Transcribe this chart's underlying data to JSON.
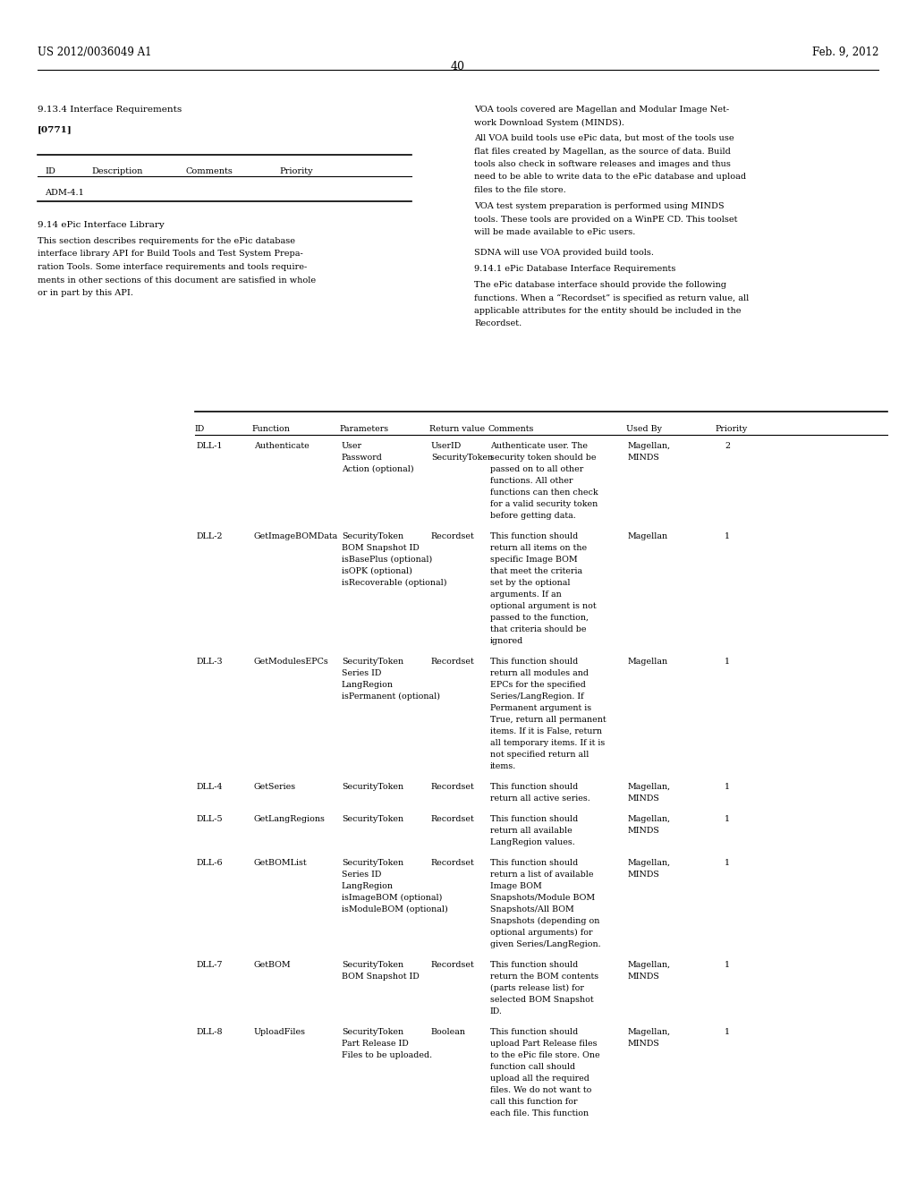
{
  "bg_color": "#ffffff",
  "header_left": "US 2012/0036049 A1",
  "header_right": "Feb. 9, 2012",
  "page_number": "40",
  "section1_heading": "9.13.4 Interface Requirements",
  "para0771": "[0771]",
  "small_table_headers": [
    "ID",
    "Description",
    "Comments",
    "Priority"
  ],
  "small_table_row": "ADM-4.1",
  "section914_heading": "9.14 ePic Interface Library",
  "section914_lines": [
    "This section describes requirements for the ePic database",
    "interface library API for Build Tools and Test System Prepa-",
    "ration Tools. Some interface requirements and tools require-",
    "ments in other sections of this document are satisfied in whole",
    "or in part by this API."
  ],
  "right_col_blocks": [
    [
      "VOA tools covered are Magellan and Modular Image Net-",
      "work Download System (MINDS)."
    ],
    [
      "All VOA build tools use ePic data, but most of the tools use",
      "flat files created by Magellan, as the source of data. Build",
      "tools also check in software releases and images and thus",
      "need to be able to write data to the ePic database and upload",
      "files to the file store."
    ],
    [
      "VOA test system preparation is performed using MINDS",
      "tools. These tools are provided on a WinPE CD. This toolset",
      "will be made available to ePic users."
    ],
    [
      "SDNA will use VOA provided build tools."
    ],
    [
      "9.14.1 ePic Database Interface Requirements"
    ],
    [
      "The ePic database interface should provide the following",
      "functions. When a “Recordset” is specified as return value, all",
      "applicable attributes for the entity should be included in the",
      "Recordset."
    ]
  ],
  "big_table_headers": [
    "ID",
    "Function",
    "Parameters",
    "Return value",
    "Comments",
    "Used By",
    "Priority"
  ],
  "big_table_rows": [
    {
      "id": "DLL-1",
      "function": "Authenticate",
      "parameters": [
        "User",
        "Password",
        "Action (optional)"
      ],
      "return_value": [
        "UserID",
        "SecurityToken"
      ],
      "comments": [
        "Authenticate user. The",
        "security token should be",
        "passed on to all other",
        "functions. All other",
        "functions can then check",
        "for a valid security token",
        "before getting data."
      ],
      "used_by": [
        "Magellan,",
        "MINDS"
      ],
      "priority": "2"
    },
    {
      "id": "DLL-2",
      "function": "GetImageBOMData",
      "parameters": [
        "SecurityToken",
        "BOM Snapshot ID",
        "isBasePlus (optional)",
        "isOPK (optional)",
        "isRecoverable (optional)"
      ],
      "return_value": [
        "Recordset"
      ],
      "comments": [
        "This function should",
        "return all items on the",
        "specific Image BOM",
        "that meet the criteria",
        "set by the optional",
        "arguments. If an",
        "optional argument is not",
        "passed to the function,",
        "that criteria should be",
        "ignored"
      ],
      "used_by": [
        "Magellan"
      ],
      "priority": "1"
    },
    {
      "id": "DLL-3",
      "function": "GetModulesEPCs",
      "parameters": [
        "SecurityToken",
        "Series ID",
        "LangRegion",
        "isPermanent (optional)"
      ],
      "return_value": [
        "Recordset"
      ],
      "comments": [
        "This function should",
        "return all modules and",
        "EPCs for the specified",
        "Series/LangRegion. If",
        "Permanent argument is",
        "True, return all permanent",
        "items. If it is False, return",
        "all temporary items. If it is",
        "not specified return all",
        "items."
      ],
      "used_by": [
        "Magellan"
      ],
      "priority": "1"
    },
    {
      "id": "DLL-4",
      "function": "GetSeries",
      "parameters": [
        "SecurityToken"
      ],
      "return_value": [
        "Recordset"
      ],
      "comments": [
        "This function should",
        "return all active series."
      ],
      "used_by": [
        "Magellan,",
        "MINDS"
      ],
      "priority": "1"
    },
    {
      "id": "DLL-5",
      "function": "GetLangRegions",
      "parameters": [
        "SecurityToken"
      ],
      "return_value": [
        "Recordset"
      ],
      "comments": [
        "This function should",
        "return all available",
        "LangRegion values."
      ],
      "used_by": [
        "Magellan,",
        "MINDS"
      ],
      "priority": "1"
    },
    {
      "id": "DLL-6",
      "function": "GetBOMList",
      "parameters": [
        "SecurityToken",
        "Series ID",
        "LangRegion",
        "isImageBOM (optional)",
        "isModuleBOM (optional)"
      ],
      "return_value": [
        "Recordset"
      ],
      "comments": [
        "This function should",
        "return a list of available",
        "Image BOM",
        "Snapshots/Module BOM",
        "Snapshots/All BOM",
        "Snapshots (depending on",
        "optional arguments) for",
        "given Series/LangRegion."
      ],
      "used_by": [
        "Magellan,",
        "MINDS"
      ],
      "priority": "1"
    },
    {
      "id": "DLL-7",
      "function": "GetBOM",
      "parameters": [
        "SecurityToken",
        "BOM Snapshot ID"
      ],
      "return_value": [
        "Recordset"
      ],
      "comments": [
        "This function should",
        "return the BOM contents",
        "(parts release list) for",
        "selected BOM Snapshot",
        "ID."
      ],
      "used_by": [
        "Magellan,",
        "MINDS"
      ],
      "priority": "1"
    },
    {
      "id": "DLL-8",
      "function": "UploadFiles",
      "parameters": [
        "SecurityToken",
        "Part Release ID",
        "Files to be uploaded."
      ],
      "return_value": [
        "Boolean"
      ],
      "comments": [
        "This function should",
        "upload Part Release files",
        "to the ePic file store. One",
        "function call should",
        "upload all the required",
        "files. We do not want to",
        "call this function for",
        "each file. This function"
      ],
      "used_by": [
        "Magellan,",
        "MINDS"
      ],
      "priority": "1"
    }
  ]
}
